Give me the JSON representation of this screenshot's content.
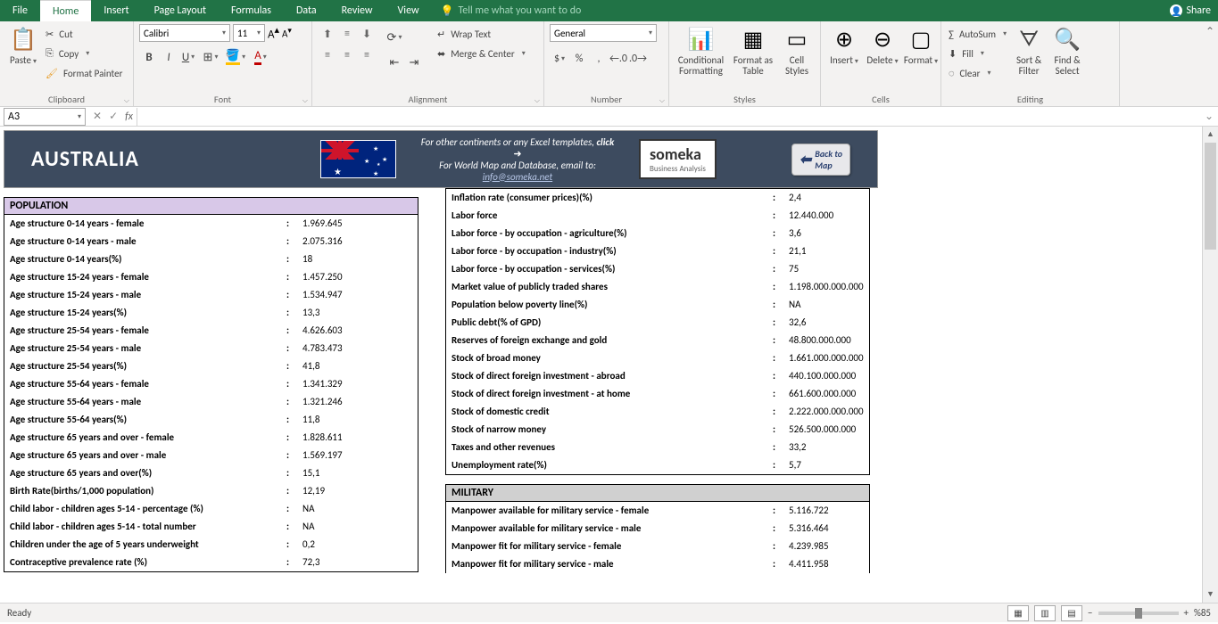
{
  "menu": {
    "file": "File",
    "home": "Home",
    "insert": "Insert",
    "pageLayout": "Page Layout",
    "formulas": "Formulas",
    "data": "Data",
    "review": "Review",
    "view": "View",
    "tellme": "Tell me what you want to do",
    "share": "Share"
  },
  "ribbon": {
    "clipboard": {
      "paste": "Paste",
      "cut": "Cut",
      "copy": "Copy",
      "formatPainter": "Format Painter",
      "label": "Clipboard"
    },
    "font": {
      "name": "Calibri",
      "size": "11",
      "label": "Font"
    },
    "alignment": {
      "wrap": "Wrap Text",
      "merge": "Merge & Center",
      "label": "Alignment"
    },
    "number": {
      "format": "General",
      "label": "Number"
    },
    "styles": {
      "conditional": "Conditional\nFormatting",
      "formatTable": "Format as\nTable",
      "cellStyles": "Cell\nStyles",
      "label": "Styles"
    },
    "cells": {
      "insert": "Insert",
      "delete": "Delete",
      "format": "Format",
      "label": "Cells"
    },
    "editing": {
      "autosum": "AutoSum",
      "fill": "Fill",
      "clear": "Clear",
      "sortFilter": "Sort &\nFilter",
      "findSelect": "Find &\nSelect",
      "label": "Editing"
    }
  },
  "namebox": "A3",
  "doc": {
    "title": "AUSTRALIA",
    "headerLine1": "For other continents or any Excel templates,",
    "headerClick": "click",
    "headerLine2": "For World Map and Database, email to:",
    "email": "info@someka.net",
    "logo": "someka",
    "logoSub": "Business Analysis",
    "backBtn": "Back to\nMap"
  },
  "sections": {
    "population": "POPULATION",
    "military": "MILITARY"
  },
  "pop": [
    {
      "k": "Age structure 0-14 years - female",
      "v": "1.969.645"
    },
    {
      "k": "Age structure 0-14 years - male",
      "v": "2.075.316"
    },
    {
      "k": "Age structure 0-14 years(%)",
      "v": "18"
    },
    {
      "k": "Age structure 15-24 years - female",
      "v": "1.457.250"
    },
    {
      "k": "Age structure 15-24 years - male",
      "v": "1.534.947"
    },
    {
      "k": "Age structure 15-24 years(%)",
      "v": "13,3"
    },
    {
      "k": "Age structure 25-54 years - female",
      "v": "4.626.603"
    },
    {
      "k": "Age structure 25-54 years - male",
      "v": "4.783.473"
    },
    {
      "k": "Age structure 25-54 years(%)",
      "v": "41,8"
    },
    {
      "k": "Age structure 55-64 years - female",
      "v": "1.341.329"
    },
    {
      "k": "Age structure 55-64 years - male",
      "v": "1.321.246"
    },
    {
      "k": "Age structure 55-64 years(%)",
      "v": "11,8"
    },
    {
      "k": "Age structure 65 years and over - female",
      "v": "1.828.611"
    },
    {
      "k": "Age structure 65 years and over - male",
      "v": "1.569.197"
    },
    {
      "k": "Age structure 65 years and over(%)",
      "v": "15,1"
    },
    {
      "k": "Birth Rate(births/1,000 population)",
      "v": "12,19"
    },
    {
      "k": "Child labor - children ages 5-14 - percentage (%)",
      "v": "NA"
    },
    {
      "k": "Child labor - children ages 5-14 - total number",
      "v": "NA"
    },
    {
      "k": "Children under the age of 5 years underweight",
      "v": "0,2"
    },
    {
      "k": "Contraceptive prevalence rate (%)",
      "v": "72,3"
    }
  ],
  "econ": [
    {
      "k": "Inflation rate (consumer prices)(%)",
      "v": "2,4"
    },
    {
      "k": "Labor force",
      "v": "12.440.000"
    },
    {
      "k": "Labor force - by occupation - agriculture(%)",
      "v": "3,6"
    },
    {
      "k": "Labor force - by occupation - industry(%)",
      "v": "21,1"
    },
    {
      "k": "Labor force - by occupation - services(%)",
      "v": "75"
    },
    {
      "k": "Market value of publicly traded shares",
      "v": "1.198.000.000.000"
    },
    {
      "k": "Population below poverty line(%)",
      "v": "NA"
    },
    {
      "k": "Public debt(% of GPD)",
      "v": "32,6"
    },
    {
      "k": "Reserves of foreign exchange and gold",
      "v": "48.800.000.000"
    },
    {
      "k": "Stock of broad money",
      "v": "1.661.000.000.000"
    },
    {
      "k": "Stock of direct foreign investment - abroad",
      "v": "440.100.000.000"
    },
    {
      "k": "Stock of direct foreign investment - at home",
      "v": "661.600.000.000"
    },
    {
      "k": "Stock of domestic credit",
      "v": "2.222.000.000.000"
    },
    {
      "k": "Stock of narrow money",
      "v": "526.500.000.000"
    },
    {
      "k": "Taxes and other revenues",
      "v": "33,2"
    },
    {
      "k": "Unemployment rate(%)",
      "v": "5,7"
    }
  ],
  "mil": [
    {
      "k": "Manpower available for military service - female",
      "v": "5.116.722"
    },
    {
      "k": "Manpower available for military service - male",
      "v": "5.316.464"
    },
    {
      "k": "Manpower fit for military service - female",
      "v": "4.239.985"
    },
    {
      "k": "Manpower fit for military service - male",
      "v": "4.411.958"
    }
  ],
  "status": {
    "ready": "Ready",
    "zoom": "%85"
  }
}
